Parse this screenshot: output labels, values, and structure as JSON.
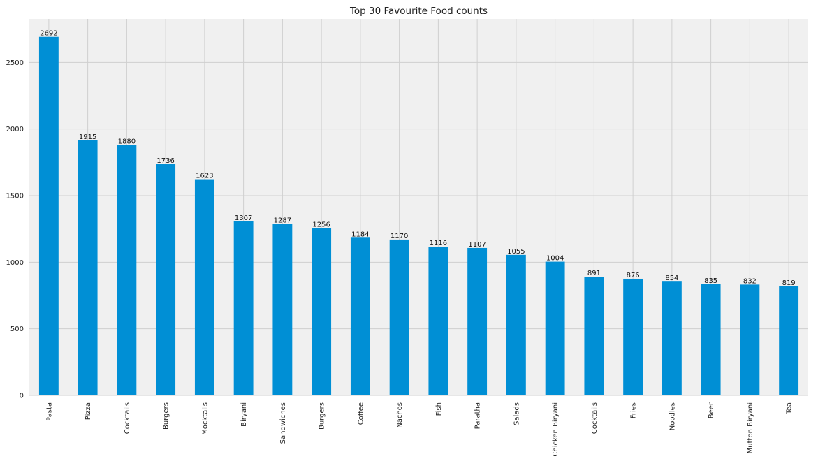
{
  "chart_data": {
    "type": "bar",
    "title": "Top 30 Favourite Food counts",
    "xlabel": "",
    "ylabel": "",
    "categories": [
      "Pasta",
      "Pizza",
      "Cocktails",
      "Burgers",
      "Mocktails",
      "Biryani",
      "Sandwiches",
      "Burgers",
      "Coffee",
      "Nachos",
      "Fish",
      "Paratha",
      "Salads",
      "Chicken Biryani",
      "Cocktails",
      "Fries",
      "Noodles",
      "Beer",
      "Mutton Biryani",
      "Tea"
    ],
    "values": [
      2692,
      1915,
      1880,
      1736,
      1623,
      1307,
      1287,
      1256,
      1184,
      1170,
      1116,
      1107,
      1055,
      1004,
      891,
      876,
      854,
      835,
      832,
      819
    ],
    "ylim": [
      0,
      2827
    ],
    "yticks": [
      0,
      500,
      1000,
      1500,
      2000,
      2500
    ],
    "grid": true,
    "bar_color": "#008fd5",
    "background_color": "#f0f0f0",
    "grid_color": "#cfcfcf"
  }
}
